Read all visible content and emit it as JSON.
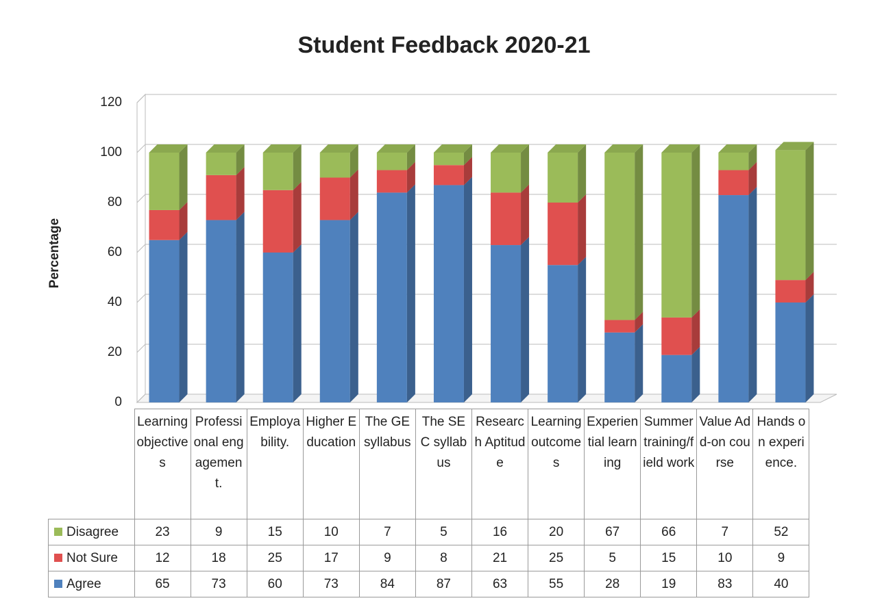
{
  "chart_data": {
    "type": "bar",
    "stacked": true,
    "title": "Student Feedback 2020-21",
    "ylabel": "Percentage",
    "categories": [
      "Learning objectives",
      "Professional engagement.",
      "Employability.",
      "Higher Education",
      "The GE syllabus",
      "The SEC syllabus",
      "Research Aptitude",
      "Learning outcomes",
      "Experiential learning",
      "Summer training/field work",
      "Value Add-on course",
      "Hands on experience."
    ],
    "series": [
      {
        "name": "Agree",
        "color": "#4f81bd",
        "values": [
          65,
          73,
          60,
          73,
          84,
          87,
          63,
          55,
          28,
          19,
          83,
          40
        ]
      },
      {
        "name": "Not Sure",
        "color": "#e0504f",
        "values": [
          12,
          18,
          25,
          17,
          9,
          8,
          21,
          25,
          5,
          15,
          10,
          9
        ]
      },
      {
        "name": "Disagree",
        "color": "#9bbb59",
        "values": [
          23,
          9,
          15,
          10,
          7,
          5,
          16,
          20,
          67,
          66,
          7,
          52
        ]
      }
    ],
    "ylim": [
      0,
      120
    ],
    "yticks": [
      0,
      20,
      40,
      60,
      80,
      100,
      120
    ],
    "grid": true
  }
}
